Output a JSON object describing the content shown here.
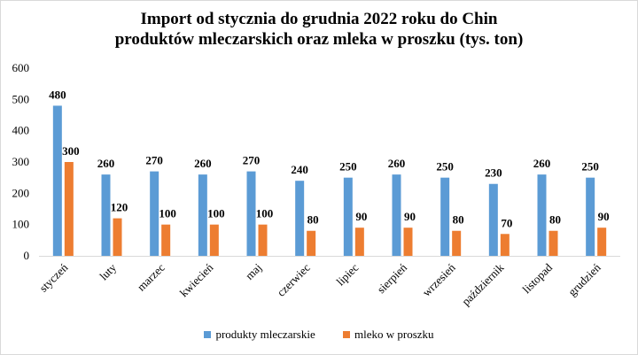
{
  "chart_data": {
    "type": "bar",
    "title_line1": "Import od stycznia do grudnia 2022 roku do Chin",
    "title_line2": "produktów mleczarskich oraz mleka w proszku (tys. ton)",
    "categories": [
      "styczeń",
      "luty",
      "marzec",
      "kwiecień",
      "maj",
      "czerwiec",
      "lipiec",
      "sierpień",
      "wrzesień",
      "październik",
      "listopad",
      "grudzień"
    ],
    "series": [
      {
        "name": "produkty mleczarskie",
        "color": "#5B9BD5",
        "values": [
          480,
          260,
          270,
          260,
          270,
          240,
          250,
          260,
          250,
          230,
          260,
          250
        ]
      },
      {
        "name": "mleko w proszku",
        "color": "#ED7D31",
        "values": [
          300,
          120,
          100,
          100,
          100,
          80,
          90,
          90,
          80,
          70,
          80,
          90
        ]
      }
    ],
    "ylim": [
      0,
      600
    ],
    "yticks": [
      0,
      100,
      200,
      300,
      400,
      500,
      600
    ],
    "grid": false,
    "legend_position": "bottom"
  }
}
